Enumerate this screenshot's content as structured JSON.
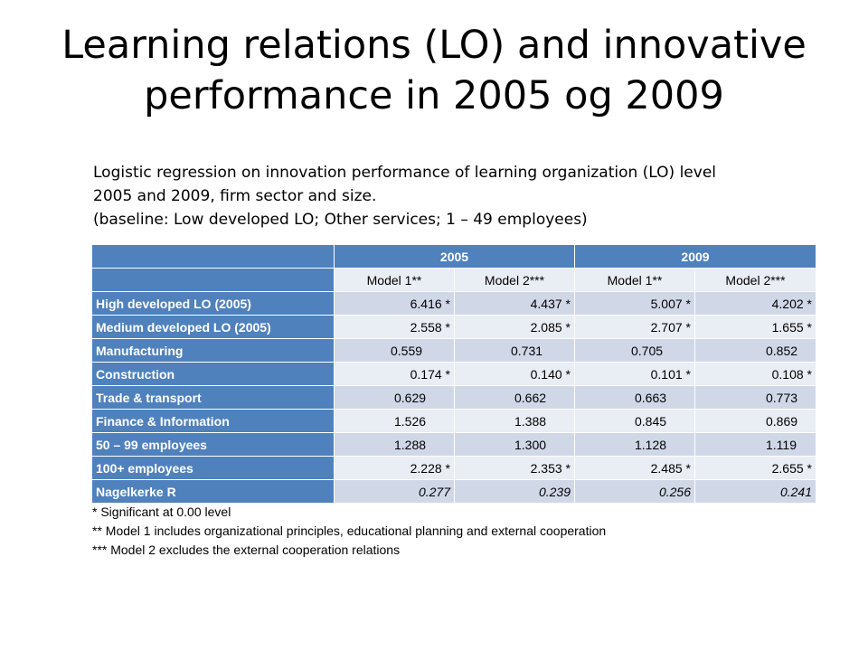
{
  "title_line1": "Learning relations (LO) and innovative",
  "title_line2": "performance in  2005 og 2009",
  "subtitle": {
    "line1": "Logistic regression on innovation performance of learning organization (LO) level",
    "line2": "2005 and 2009, firm sector and size.",
    "line3": "(baseline: Low developed LO; Other services; 1 – 49 employees)"
  },
  "table": {
    "years": [
      "2005",
      "2009"
    ],
    "models": [
      "Model 1**",
      "Model 2***",
      "Model 1**",
      "Model 2***"
    ],
    "rows": [
      {
        "label": "High developed LO (2005)",
        "values": [
          "6.416 *",
          "4.437 *",
          "5.007 *",
          "4.202 *"
        ]
      },
      {
        "label": "Medium developed LO (2005)",
        "values": [
          "2.558 *",
          "2.085 *",
          "2.707 *",
          "1.655 *"
        ]
      },
      {
        "label": "Manufacturing",
        "values": [
          "0.559",
          "0.731",
          "0.705",
          "0.852"
        ]
      },
      {
        "label": "Construction",
        "values": [
          "0.174 *",
          "0.140 *",
          "0.101 *",
          "0.108 *"
        ]
      },
      {
        "label": "Trade & transport",
        "values": [
          "0.629",
          "0.662",
          "0.663",
          "0.773"
        ]
      },
      {
        "label": "Finance & Information",
        "values": [
          "1.526",
          "1.388",
          "0.845",
          "0.869"
        ]
      },
      {
        "label": "50 – 99 employees",
        "values": [
          "1.288",
          "1.300",
          "1.128",
          "1.119"
        ]
      },
      {
        "label": "100+ employees",
        "values": [
          "2.228 *",
          "2.353 *",
          "2.485 *",
          "2.655 *"
        ]
      },
      {
        "label": "Nagelkerke R",
        "values": [
          "0.277",
          "0.239",
          "0.256",
          "0.241"
        ]
      }
    ]
  },
  "notes": [
    "* Significant at 0.00 level",
    "** Model 1 includes organizational principles, educational planning and external cooperation",
    "*** Model 2 excludes the external cooperation relations"
  ],
  "colors": {
    "header_blue": "#4f81bd",
    "band_dark": "#d0d8e8",
    "band_light": "#e9edf4"
  }
}
